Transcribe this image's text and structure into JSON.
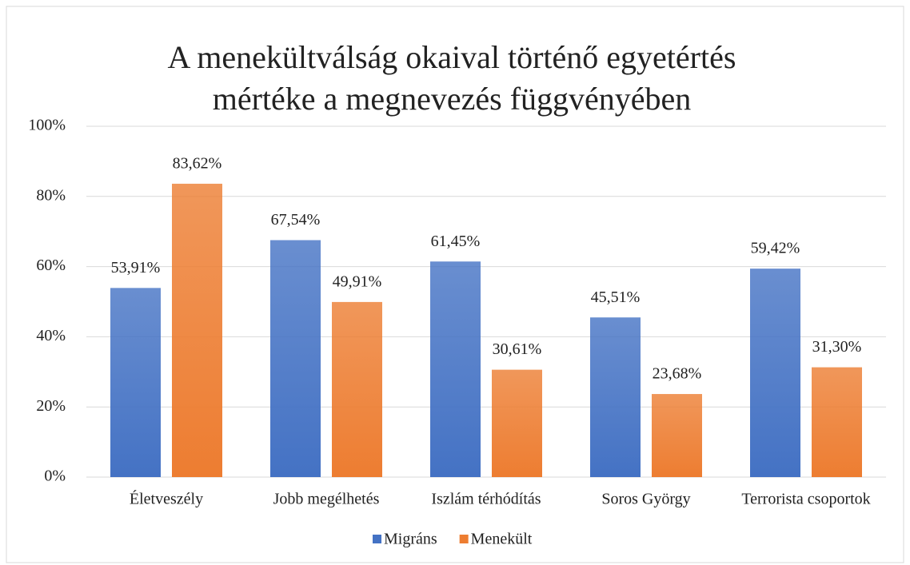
{
  "chart_data": {
    "type": "bar",
    "title": [
      "A menekültválság okaival történő egyetértés",
      "mértéke a megnevezés függvényében"
    ],
    "categories": [
      "Életveszély",
      "Jobb megélhetés",
      "Iszlám térhódítás",
      "Soros György",
      "Terrorista csoportok"
    ],
    "series": [
      {
        "name": "Migráns",
        "color": "#4472c4",
        "values": [
          53.91,
          67.54,
          61.45,
          45.51,
          59.42
        ],
        "value_labels": [
          "53,91%",
          "67,54%",
          "61,45%",
          "45,51%",
          "59,42%"
        ]
      },
      {
        "name": "Menekült",
        "color": "#ed7d31",
        "values": [
          83.62,
          49.91,
          30.61,
          23.68,
          31.3
        ],
        "value_labels": [
          "83,62%",
          "49,91%",
          "30,61%",
          "23,68%",
          "31,30%"
        ]
      }
    ],
    "ylim": [
      0,
      100
    ],
    "yticks": [
      {
        "value": 0,
        "label": "0%"
      },
      {
        "value": 20,
        "label": "20%"
      },
      {
        "value": 40,
        "label": "40%"
      },
      {
        "value": 60,
        "label": "60%"
      },
      {
        "value": 80,
        "label": "80%"
      },
      {
        "value": 100,
        "label": "100%"
      }
    ],
    "grid": true,
    "legend": "bottom"
  }
}
